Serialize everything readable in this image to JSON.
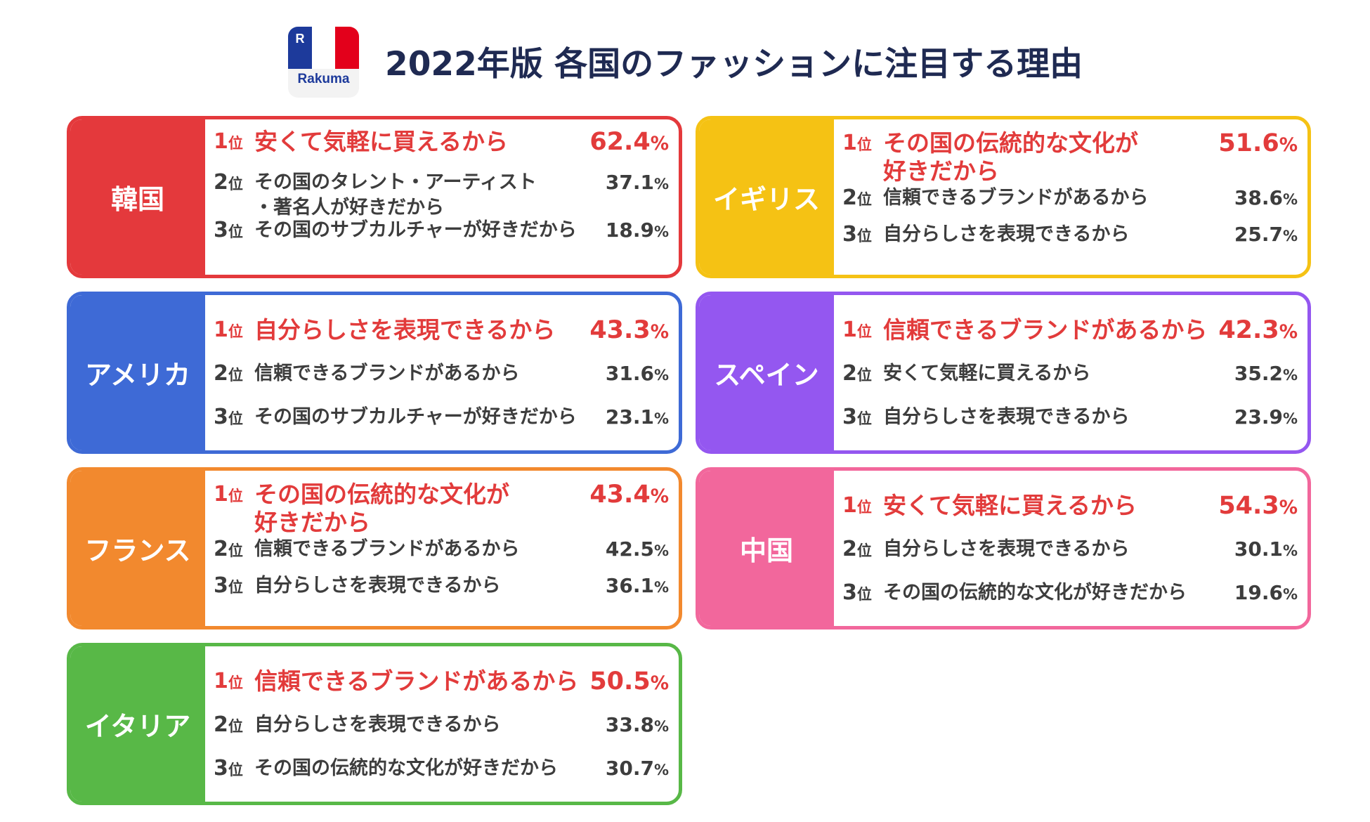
{
  "header": {
    "logo_text": "Rakuma",
    "logo_mark": "R",
    "title": "2022年版 各国のファッションに注目する理由"
  },
  "rank_suffix": "位",
  "chart_data": {
    "type": "table",
    "title": "2022年版 各国のファッションに注目する理由",
    "unit": "%",
    "countries": [
      {
        "name": "韓国",
        "color": "#e4393c",
        "items": [
          {
            "rank": "1",
            "reason": "安くて気軽に買えるから",
            "value": 62.4
          },
          {
            "rank": "2",
            "reason": "その国のタレント・アーティスト\n・著名人が好きだから",
            "value": 37.1
          },
          {
            "rank": "3",
            "reason": "その国のサブカルチャーが好きだから",
            "value": 18.9
          }
        ]
      },
      {
        "name": "イギリス",
        "color": "#f5c214",
        "items": [
          {
            "rank": "1",
            "reason": "その国の伝統的な文化が\n好きだから",
            "value": 51.6
          },
          {
            "rank": "2",
            "reason": "信頼できるブランドがあるから",
            "value": 38.6
          },
          {
            "rank": "3",
            "reason": "自分らしさを表現できるから",
            "value": 25.7
          }
        ]
      },
      {
        "name": "アメリカ",
        "color": "#3e6ad6",
        "items": [
          {
            "rank": "1",
            "reason": "自分らしさを表現できるから",
            "value": 43.3
          },
          {
            "rank": "2",
            "reason": "信頼できるブランドがあるから",
            "value": 31.6
          },
          {
            "rank": "3",
            "reason": "その国のサブカルチャーが好きだから",
            "value": 23.1
          }
        ]
      },
      {
        "name": "スペイン",
        "color": "#9457f0",
        "items": [
          {
            "rank": "1",
            "reason": "信頼できるブランドがあるから",
            "value": 42.3
          },
          {
            "rank": "2",
            "reason": "安くて気軽に買えるから",
            "value": 35.2
          },
          {
            "rank": "3",
            "reason": "自分らしさを表現できるから",
            "value": 23.9
          }
        ]
      },
      {
        "name": "フランス",
        "color": "#f2892e",
        "items": [
          {
            "rank": "1",
            "reason": "その国の伝統的な文化が\n好きだから",
            "value": 43.4
          },
          {
            "rank": "2",
            "reason": "信頼できるブランドがあるから",
            "value": 42.5
          },
          {
            "rank": "3",
            "reason": "自分らしさを表現できるから",
            "value": 36.1
          }
        ]
      },
      {
        "name": "中国",
        "color": "#f2679c",
        "items": [
          {
            "rank": "1",
            "reason": "安くて気軽に買えるから",
            "value": 54.3
          },
          {
            "rank": "2",
            "reason": "自分らしさを表現できるから",
            "value": 30.1
          },
          {
            "rank": "3",
            "reason": "その国の伝統的な文化が好きだから",
            "value": 19.6
          }
        ]
      },
      {
        "name": "イタリア",
        "color": "#58b847",
        "items": [
          {
            "rank": "1",
            "reason": "信頼できるブランドがあるから",
            "value": 50.5
          },
          {
            "rank": "2",
            "reason": "自分らしさを表現できるから",
            "value": 33.8
          },
          {
            "rank": "3",
            "reason": "その国の伝統的な文化が好きだから",
            "value": 30.7
          }
        ]
      }
    ]
  }
}
